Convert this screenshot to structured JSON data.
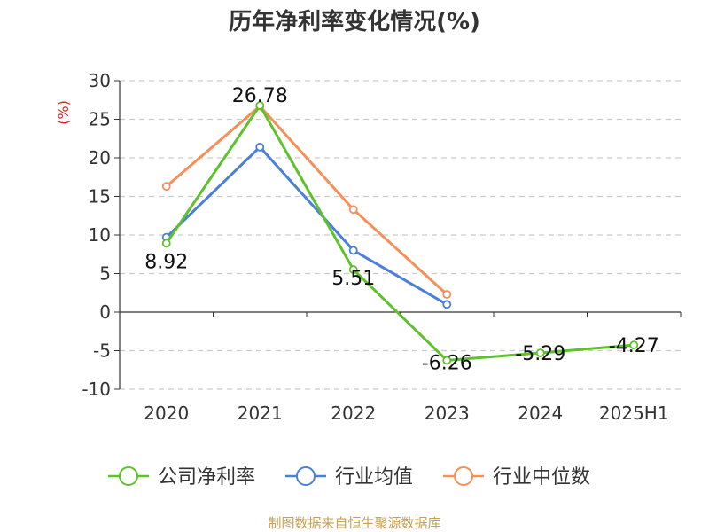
{
  "chart_data": {
    "type": "line",
    "title": "历年净利率变化情况(%)",
    "y_unit": "(%)",
    "categories": [
      "2020",
      "2021",
      "2022",
      "2023",
      "2024",
      "2025H1"
    ],
    "ylim": [
      -10,
      30
    ],
    "yticks": [
      30,
      25,
      20,
      15,
      10,
      5,
      0,
      -5,
      -10
    ],
    "grid": true,
    "legend_position": "bottom",
    "series": [
      {
        "name": "公司净利率",
        "color": "#5dc22b",
        "values": [
          8.92,
          26.78,
          5.51,
          -6.26,
          -5.29,
          -4.27
        ],
        "labels": [
          "8.92",
          "26.78",
          "5.51",
          "-6.26",
          "-5.29",
          "-4.27"
        ]
      },
      {
        "name": "行业均值",
        "color": "#4a7fdc",
        "values": [
          9.7,
          21.4,
          8.0,
          1.0,
          null,
          null
        ]
      },
      {
        "name": "行业中位数",
        "color": "#f5905a",
        "values": [
          16.3,
          26.7,
          13.3,
          2.3,
          null,
          null
        ]
      }
    ],
    "source": "制图数据来自恒生聚源数据库"
  }
}
